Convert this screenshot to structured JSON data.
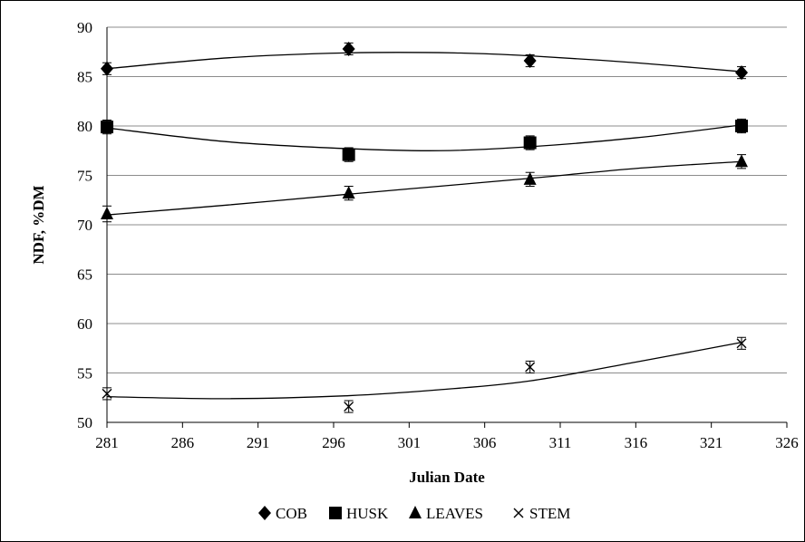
{
  "chart_data": {
    "type": "scatter",
    "title": "",
    "xlabel": "Julian Date",
    "ylabel": "NDF, %DM",
    "xlim": [
      281,
      326
    ],
    "ylim": [
      50,
      90
    ],
    "xticks": [
      281,
      286,
      291,
      296,
      301,
      306,
      311,
      316,
      321,
      326
    ],
    "yticks": [
      50,
      55,
      60,
      65,
      70,
      75,
      80,
      85,
      90
    ],
    "grid": "horizontal",
    "legend_position": "bottom",
    "trendline": "polynomial",
    "series": [
      {
        "name": "COB",
        "marker": "diamond",
        "x": [
          281,
          297,
          309,
          323
        ],
        "y": [
          85.8,
          87.8,
          86.6,
          85.4
        ],
        "err": [
          0.6,
          0.6,
          0.6,
          0.6
        ],
        "trend": [
          [
            281,
            85.8
          ],
          [
            289,
            86.9
          ],
          [
            297,
            87.4
          ],
          [
            304,
            87.4
          ],
          [
            309,
            87.1
          ],
          [
            316,
            86.4
          ],
          [
            323,
            85.5
          ]
        ]
      },
      {
        "name": "HUSK",
        "marker": "square",
        "x": [
          281,
          297,
          309,
          323
        ],
        "y": [
          79.9,
          77.1,
          78.3,
          80.0
        ],
        "err": [
          0.7,
          0.7,
          0.7,
          0.7
        ],
        "trend": [
          [
            281,
            79.8
          ],
          [
            289,
            78.4
          ],
          [
            297,
            77.7
          ],
          [
            303,
            77.5
          ],
          [
            309,
            77.9
          ],
          [
            316,
            78.8
          ],
          [
            323,
            80.1
          ]
        ]
      },
      {
        "name": "LEAVES",
        "marker": "triangle",
        "x": [
          281,
          297,
          309,
          323
        ],
        "y": [
          71.1,
          73.2,
          74.6,
          76.4
        ],
        "err": [
          0.8,
          0.7,
          0.7,
          0.7
        ],
        "trend": [
          [
            281,
            71.0
          ],
          [
            289,
            72.0
          ],
          [
            297,
            73.1
          ],
          [
            303,
            73.9
          ],
          [
            309,
            74.7
          ],
          [
            316,
            75.7
          ],
          [
            323,
            76.4
          ]
        ]
      },
      {
        "name": "STEM",
        "marker": "x",
        "x": [
          281,
          297,
          309,
          323
        ],
        "y": [
          52.9,
          51.6,
          55.6,
          58.0
        ],
        "err": [
          0.6,
          0.6,
          0.6,
          0.6
        ],
        "trend": [
          [
            281,
            52.6
          ],
          [
            289,
            52.4
          ],
          [
            297,
            52.7
          ],
          [
            303,
            53.3
          ],
          [
            309,
            54.2
          ],
          [
            316,
            56.1
          ],
          [
            323,
            58.1
          ]
        ]
      }
    ]
  }
}
